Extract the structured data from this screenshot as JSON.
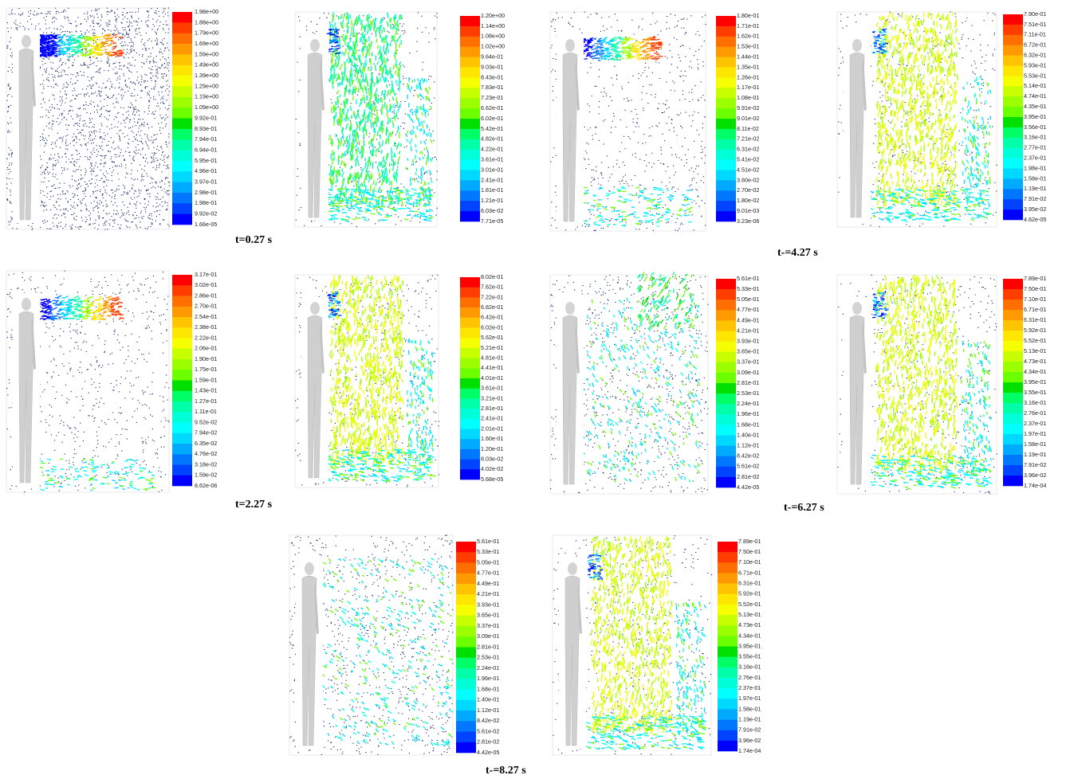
{
  "colorbar_colors": [
    "#ff0000",
    "#ff3d00",
    "#ff6e00",
    "#ff9900",
    "#ffc300",
    "#ffe600",
    "#f5ff00",
    "#c8ff00",
    "#9cff00",
    "#6bff00",
    "#00e000",
    "#00ff66",
    "#00ffa8",
    "#00ffd9",
    "#00ffff",
    "#00d9ff",
    "#00aaff",
    "#0077ff",
    "#0044ff",
    "#0000ff"
  ],
  "panels": [
    {
      "colorbar_labels": [
        "1.98e+00",
        "1.88e+00",
        "1.79e+00",
        "1.69e+00",
        "1.59e+00",
        "1.49e+00",
        "1.39e+00",
        "1.29e+00",
        "1.19e+00",
        "1.09e+00",
        "9.92e-01",
        "8.93e-01",
        "7.94e-01",
        "6.94e-01",
        "5.95e-01",
        "4.96e-01",
        "3.97e-01",
        "2.98e-01",
        "1.98e-01",
        "9.92e-02",
        "1.66e-05"
      ]
    },
    {
      "colorbar_labels": [
        "1.20e+00",
        "1.14e+00",
        "1.08e+00",
        "1.02e+00",
        "9.64e-01",
        "9.03e-01",
        "8.43e-01",
        "7.83e-01",
        "7.23e-01",
        "6.62e-01",
        "6.02e-01",
        "5.42e-01",
        "4.82e-01",
        "4.22e-01",
        "3.61e-01",
        "3.01e-01",
        "2.41e-01",
        "1.81e-01",
        "1.21e-01",
        "6.03e-02",
        "7.71e-05"
      ]
    },
    {
      "colorbar_labels": [
        "1.80e-01",
        "1.71e-01",
        "1.62e-01",
        "1.53e-01",
        "1.44e-01",
        "1.35e-01",
        "1.26e-01",
        "1.17e-01",
        "1.08e-01",
        "9.91e-02",
        "9.01e-02",
        "8.11e-02",
        "7.21e-02",
        "6.31e-02",
        "5.41e-02",
        "4.51e-02",
        "3.60e-02",
        "2.70e-02",
        "1.80e-02",
        "9.01e-03",
        "3.23e-06"
      ]
    },
    {
      "colorbar_labels": [
        "7.90e-01",
        "7.51e-01",
        "7.11e-01",
        "6.72e-01",
        "6.32e-01",
        "5.93e-01",
        "5.53e-01",
        "5.14e-01",
        "4.74e-01",
        "4.35e-01",
        "3.95e-01",
        "3.56e-01",
        "3.16e-01",
        "2.77e-01",
        "2.37e-01",
        "1.98e-01",
        "1.58e-01",
        "1.19e-01",
        "7.91e-02",
        "3.95e-02",
        "4.62e-05"
      ]
    },
    {
      "colorbar_labels": [
        "3.17e-01",
        "3.02e-01",
        "2.86e-01",
        "2.70e-01",
        "2.54e-01",
        "2.38e-01",
        "2.22e-01",
        "2.06e-01",
        "1.90e-01",
        "1.75e-01",
        "1.59e-01",
        "1.43e-01",
        "1.27e-01",
        "1.11e-01",
        "9.52e-02",
        "7.94e-02",
        "6.35e-02",
        "4.76e-02",
        "3.18e-02",
        "1.59e-02",
        "8.62e-06"
      ]
    },
    {
      "colorbar_labels": [
        "8.02e-01",
        "7.62e-01",
        "7.22e-01",
        "6.82e-01",
        "6.42e-01",
        "6.02e-01",
        "5.62e-01",
        "5.21e-01",
        "4.81e-01",
        "4.41e-01",
        "4.01e-01",
        "3.61e-01",
        "3.21e-01",
        "2.81e-01",
        "2.41e-01",
        "2.01e-01",
        "1.60e-01",
        "1.20e-01",
        "8.03e-02",
        "4.02e-02",
        "5.68e-05"
      ]
    },
    {
      "colorbar_labels": [
        "5.61e-01",
        "5.33e-01",
        "5.05e-01",
        "4.77e-01",
        "4.49e-01",
        "4.21e-01",
        "3.93e-01",
        "3.65e-01",
        "3.37e-01",
        "3.09e-01",
        "2.81e-01",
        "2.53e-01",
        "2.24e-01",
        "1.96e-01",
        "1.68e-01",
        "1.40e-01",
        "1.12e-01",
        "8.42e-02",
        "5.61e-02",
        "2.81e-02",
        "4.42e-05"
      ]
    },
    {
      "colorbar_labels": [
        "7.89e-01",
        "7.50e-01",
        "7.10e-01",
        "6.71e-01",
        "6.31e-01",
        "5.92e-01",
        "5.52e-01",
        "5.13e-01",
        "4.73e-01",
        "4.34e-01",
        "3.95e-01",
        "3.55e-01",
        "3.16e-01",
        "2.76e-01",
        "2.37e-01",
        "1.97e-01",
        "1.58e-01",
        "1.19e-01",
        "7.91e-02",
        "3.96e-02",
        "1.74e-04"
      ]
    },
    {
      "colorbar_labels": [
        "5.61e-01",
        "5.33e-01",
        "5.05e-01",
        "4.77e-01",
        "4.49e-01",
        "4.21e-01",
        "3.93e-01",
        "3.65e-01",
        "3.37e-01",
        "3.09e-01",
        "2.81e-01",
        "2.53e-01",
        "2.24e-01",
        "1.96e-01",
        "1.68e-01",
        "1.40e-01",
        "1.12e-01",
        "8.42e-02",
        "5.61e-02",
        "2.81e-02",
        "4.42e-05"
      ]
    },
    {
      "colorbar_labels": [
        "7.89e-01",
        "7.50e-01",
        "7.10e-01",
        "6.71e-01",
        "6.31e-01",
        "5.92e-01",
        "5.52e-01",
        "5.13e-01",
        "4.73e-01",
        "4.34e-01",
        "3.95e-01",
        "3.55e-01",
        "3.16e-01",
        "2.76e-01",
        "2.37e-01",
        "1.97e-01",
        "1.58e-01",
        "1.19e-01",
        "7.91e-02",
        "3.96e-02",
        "1.74e-04"
      ]
    }
  ],
  "captions": [
    "t=0.27 s",
    "t-=4.27 s",
    "t=2.27 s",
    "t-=6.27 s",
    "t-=8.27 s"
  ]
}
